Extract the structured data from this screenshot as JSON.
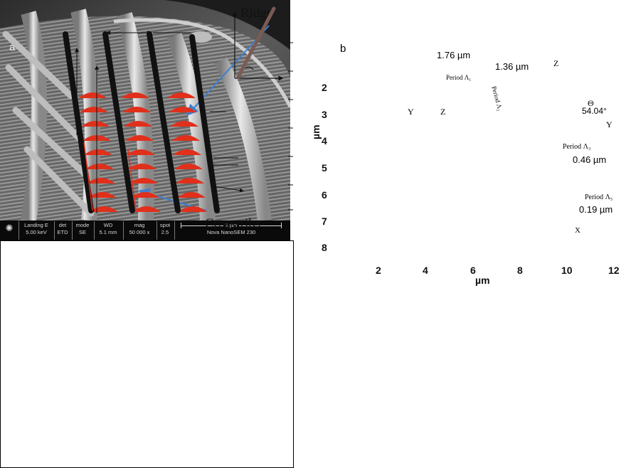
{
  "panel_a": {
    "letter": "a",
    "ridge_label": "Ridge",
    "crossribs_label": "Cross-ribs",
    "info_bar": {
      "landing_label": "Landing E",
      "landing_value": "5.00 keV",
      "det_label": "det",
      "det_value": "ETD",
      "mode_label": "mode",
      "mode_value": "SE",
      "wd_label": "WD",
      "wd_value": "5.1 mm",
      "mag_label": "mag",
      "mag_value": "50 000 x",
      "spot_label": "spot",
      "spot_value": "2.5",
      "scale_label": "2 µm",
      "instrument": "Nova NanoSEM 230"
    }
  },
  "panel_b": {
    "letter": "b",
    "x_ticks": [
      "2",
      "4",
      "6",
      "8",
      "10",
      "12"
    ],
    "y_ticks": [
      "2",
      "3",
      "4",
      "5",
      "6",
      "7",
      "8"
    ],
    "x_unit": "µm",
    "y_unit": "µm",
    "dim_176": "1.76 µm",
    "dim_136": "1.36 µm",
    "period_lambda1": "Period Λ₁",
    "period_lambda2": "Period Λ₂",
    "period_lambda3": "Period Λ₃",
    "period_lambda3_value": "0.46 µm",
    "period_lambda5": "Period Λ₅",
    "period_lambda5_value": "0.19 µm",
    "axis_y": "Y",
    "axis_z": "Z",
    "axis_x": "X",
    "inset_z": "Z",
    "inset_y": "Y",
    "inset_theta": "Θ",
    "inset_angle": "54.04°"
  },
  "colors": {
    "arrow_blue": "#3f7fd0",
    "ridge_red": "#e0301c",
    "ridge_black": "#111111",
    "shadow_gray": "#bdbdbd",
    "sem_bg": "#3d3d3d"
  }
}
